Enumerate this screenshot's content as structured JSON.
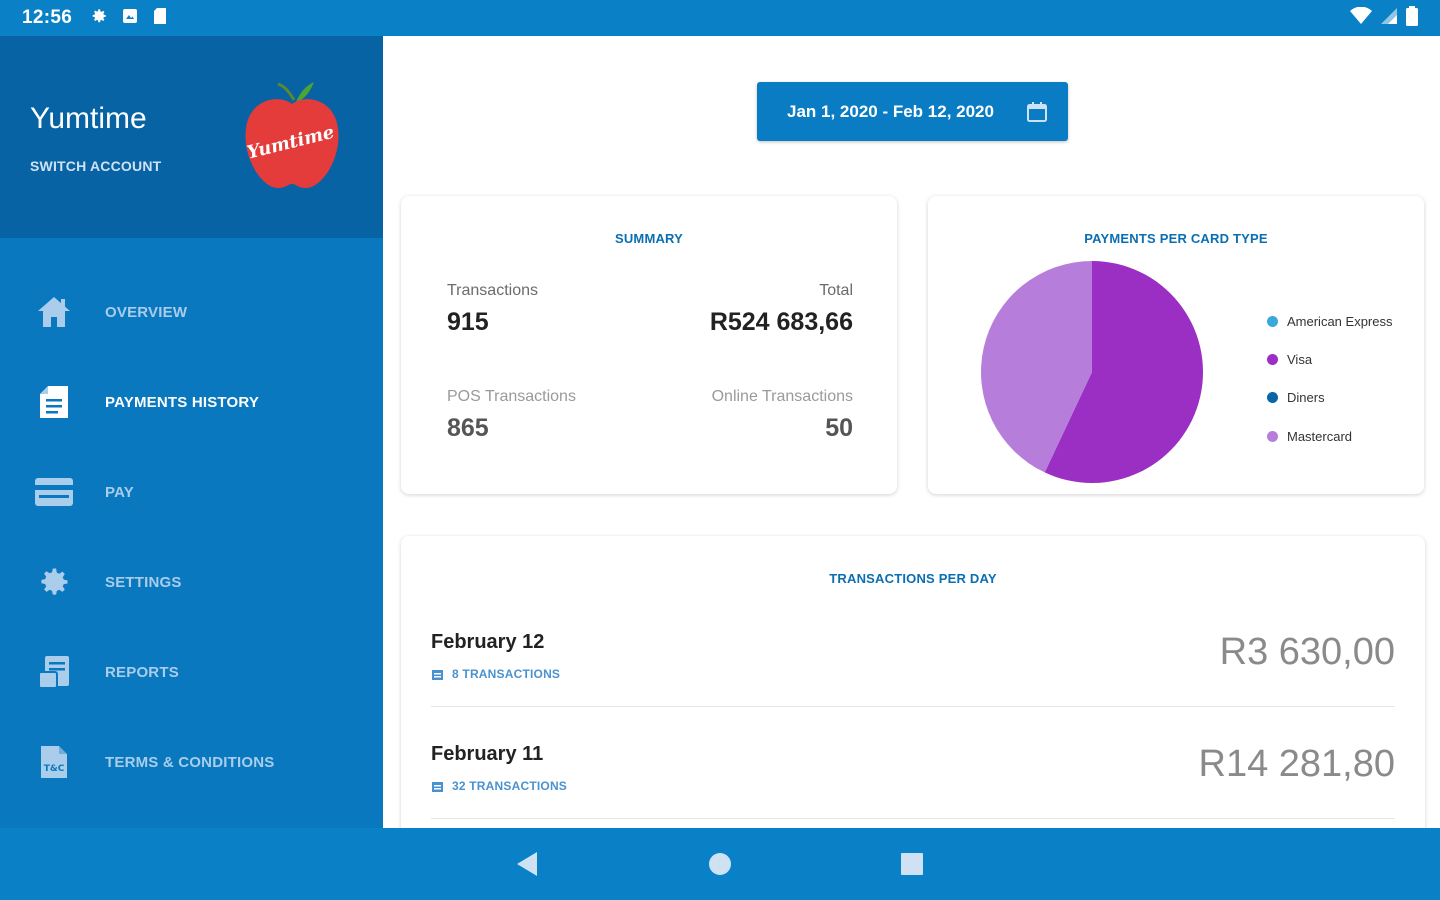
{
  "status_bar": {
    "time": "12:56",
    "left_icons": [
      "gear-icon",
      "photo-icon",
      "sdcard-icon"
    ],
    "right_icons": [
      "wifi-icon",
      "signal-icon",
      "battery-icon"
    ]
  },
  "sidebar": {
    "account_name": "Yumtime",
    "switch_account": "SWITCH ACCOUNT",
    "logo_text": "Yumtime",
    "items": [
      {
        "label": "OVERVIEW",
        "icon": "home-icon",
        "active": false
      },
      {
        "label": "PAYMENTS HISTORY",
        "icon": "document-icon",
        "active": true
      },
      {
        "label": "PAY",
        "icon": "credit-card-icon",
        "active": false
      },
      {
        "label": "SETTINGS",
        "icon": "gear-icon",
        "active": false
      },
      {
        "label": "REPORTS",
        "icon": "reports-icon",
        "active": false
      },
      {
        "label": "TERMS & CONDITIONS",
        "icon": "terms-icon",
        "active": false
      }
    ]
  },
  "date_range": {
    "label": "Jan 1, 2020 - Feb 12, 2020",
    "icon": "calendar-icon"
  },
  "summary": {
    "title": "SUMMARY",
    "transactions_label": "Transactions",
    "transactions_value": "915",
    "total_label": "Total",
    "total_value": "R524 683,66",
    "pos_label": "POS Transactions",
    "pos_value": "865",
    "online_label": "Online Transactions",
    "online_value": "50"
  },
  "card_types": {
    "title": "PAYMENTS PER CARD TYPE",
    "legend": [
      {
        "name": "American Express",
        "color": "#3ba8dc"
      },
      {
        "name": "Visa",
        "color": "#9b2fc4"
      },
      {
        "name": "Diners",
        "color": "#0a64a8"
      },
      {
        "name": "Mastercard",
        "color": "#b77ddb"
      }
    ]
  },
  "chart_data": {
    "type": "pie",
    "title": "PAYMENTS PER CARD TYPE",
    "slices": [
      {
        "name": "American Express",
        "value": 0,
        "color": "#3ba8dc"
      },
      {
        "name": "Visa",
        "value": 57,
        "color": "#9b2fc4"
      },
      {
        "name": "Diners",
        "value": 0,
        "color": "#0a64a8"
      },
      {
        "name": "Mastercard",
        "value": 43,
        "color": "#b77ddb"
      }
    ],
    "legend_position": "right"
  },
  "per_day": {
    "title": "TRANSACTIONS PER DAY",
    "rows": [
      {
        "date": "February 12",
        "transactions": "8 TRANSACTIONS",
        "amount": "R3 630,00"
      },
      {
        "date": "February 11",
        "transactions": "32 TRANSACTIONS",
        "amount": "R14 281,80"
      }
    ]
  },
  "nav_bar": {
    "buttons": [
      "back-icon",
      "home-circle-icon",
      "recents-icon"
    ]
  }
}
